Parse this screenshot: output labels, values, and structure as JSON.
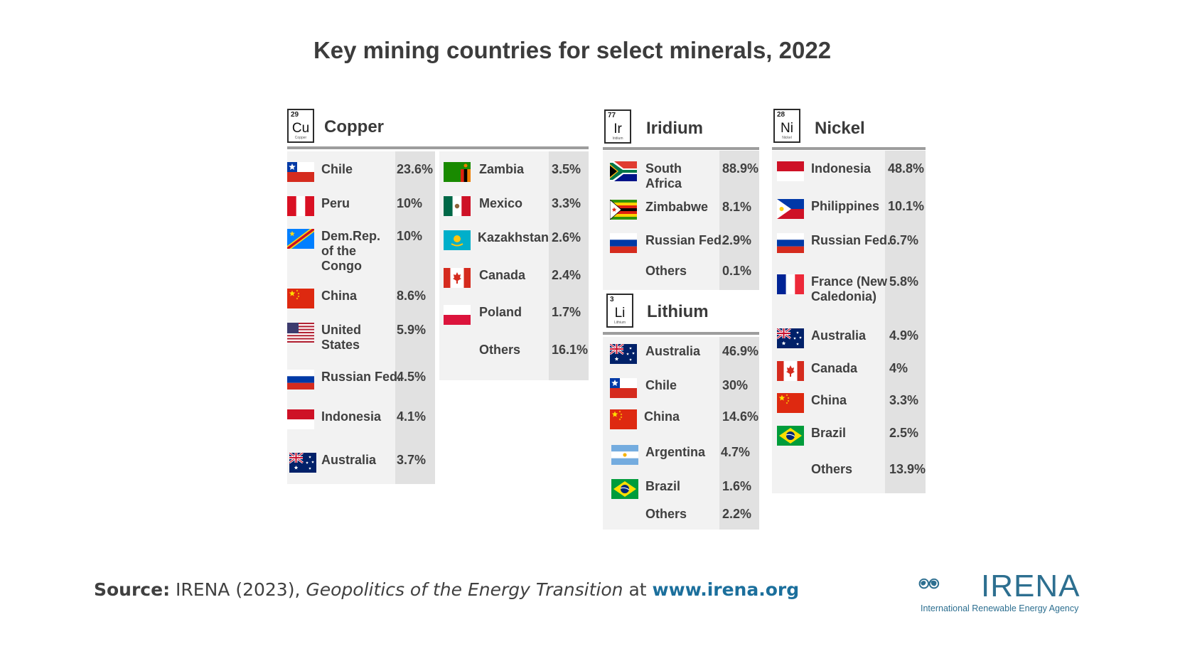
{
  "title": "Key mining countries for select minerals, 2022",
  "colors": {
    "panel": "#f2f2f2",
    "pct_column": "#e1e1e1",
    "rule": "#9d9d9d",
    "brand": "#2d6f90",
    "link": "#1b6f9c"
  },
  "source": {
    "label": "Source:",
    "prefix": " IRENA (2023), ",
    "work": "Geopolitics of the Energy Transition",
    "at": " at ",
    "url": "www.irena.org"
  },
  "logo": {
    "word": "IRENA",
    "subtitle": "International Renewable Energy Agency"
  },
  "chart_data": {
    "type": "table",
    "minerals": [
      {
        "name": "Copper",
        "symbol": "Cu",
        "atomic_number": "29",
        "element_label": "Copper",
        "rows": [
          {
            "country": "Chile",
            "share": "23.6%",
            "flag": "chile-flag"
          },
          {
            "country": "Peru",
            "share": "10%",
            "flag": "peru-flag"
          },
          {
            "country": "Dem.Rep.\nof the\nCongo",
            "share": "10%",
            "flag": "drc-flag"
          },
          {
            "country": "China",
            "share": "8.6%",
            "flag": "china-flag"
          },
          {
            "country": "United\nStates",
            "share": "5.9%",
            "flag": "usa-flag"
          },
          {
            "country": "Russian Fed.",
            "share": "4.5%",
            "flag": "russia-flag"
          },
          {
            "country": "Indonesia",
            "share": "4.1%",
            "flag": "indonesia-flag"
          },
          {
            "country": "Australia",
            "share": "3.7%",
            "flag": "australia-flag"
          },
          {
            "country": "Zambia",
            "share": "3.5%",
            "flag": "zambia-flag"
          },
          {
            "country": "Mexico",
            "share": "3.3%",
            "flag": "mexico-flag"
          },
          {
            "country": "Kazakhstan",
            "share": "2.6%",
            "flag": "kazakhstan-flag"
          },
          {
            "country": "Canada",
            "share": "2.4%",
            "flag": "canada-flag"
          },
          {
            "country": "Poland",
            "share": "1.7%",
            "flag": "poland-flag"
          },
          {
            "country": "Others",
            "share": "16.1%",
            "flag": ""
          }
        ]
      },
      {
        "name": "Iridium",
        "symbol": "Ir",
        "atomic_number": "77",
        "element_label": "Iridium",
        "rows": [
          {
            "country": "South\nAfrica",
            "share": "88.9%",
            "flag": "south-africa-flag"
          },
          {
            "country": "Zimbabwe",
            "share": "8.1%",
            "flag": "zimbabwe-flag"
          },
          {
            "country": "Russian Fed.",
            "share": "2.9%",
            "flag": "russia-flag"
          },
          {
            "country": "Others",
            "share": "0.1%",
            "flag": ""
          }
        ]
      },
      {
        "name": "Lithium",
        "symbol": "Li",
        "atomic_number": "3",
        "element_label": "Lithium",
        "rows": [
          {
            "country": "Australia",
            "share": "46.9%",
            "flag": "australia-flag"
          },
          {
            "country": "Chile",
            "share": "30%",
            "flag": "chile-flag"
          },
          {
            "country": "China",
            "share": "14.6%",
            "flag": "china-flag"
          },
          {
            "country": "Argentina",
            "share": "4.7%",
            "flag": "argentina-flag"
          },
          {
            "country": "Brazil",
            "share": "1.6%",
            "flag": "brazil-flag"
          },
          {
            "country": "Others",
            "share": "2.2%",
            "flag": ""
          }
        ]
      },
      {
        "name": "Nickel",
        "symbol": "Ni",
        "atomic_number": "28",
        "element_label": "Nickel",
        "rows": [
          {
            "country": "Indonesia",
            "share": "48.8%",
            "flag": "indonesia-flag"
          },
          {
            "country": "Philippines",
            "share": "10.1%",
            "flag": "philippines-flag"
          },
          {
            "country": "Russian Fed.",
            "share": "6.7%",
            "flag": "russia-flag"
          },
          {
            "country": "France (New\nCaledonia)",
            "share": "5.8%",
            "flag": "france-flag"
          },
          {
            "country": "Australia",
            "share": "4.9%",
            "flag": "australia-flag"
          },
          {
            "country": "Canada",
            "share": "4%",
            "flag": "canada-flag"
          },
          {
            "country": "China",
            "share": "3.3%",
            "flag": "china-flag"
          },
          {
            "country": "Brazil",
            "share": "2.5%",
            "flag": "brazil-flag"
          },
          {
            "country": "Others",
            "share": "13.9%",
            "flag": ""
          }
        ]
      }
    ]
  }
}
